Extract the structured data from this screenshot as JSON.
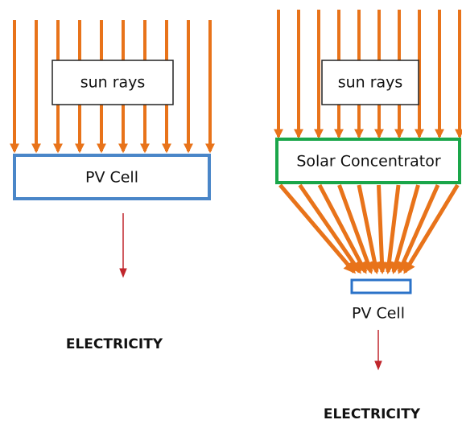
{
  "left": {
    "rays_label": "sun rays",
    "cell_label": "PV Cell",
    "output_label": "ELECTRICITY"
  },
  "right": {
    "rays_label": "sun rays",
    "concentrator_label": "Solar Concentrator",
    "cell_label": "PV Cell",
    "output_label": "ELECTRICITY"
  }
}
